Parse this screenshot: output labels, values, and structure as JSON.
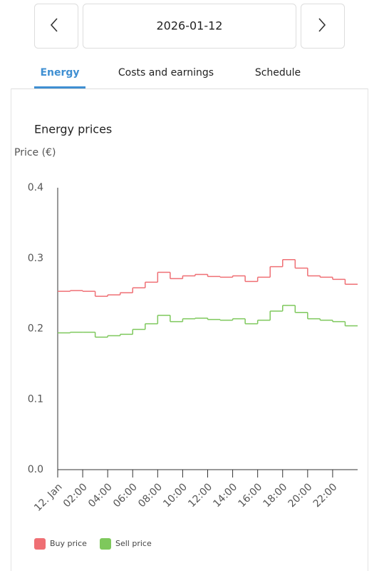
{
  "nav": {
    "date": "2026-01-12"
  },
  "tabs": [
    "Energy",
    "Costs and earnings",
    "Schedule"
  ],
  "chart_data": {
    "type": "line",
    "step": "post",
    "title": "Energy prices",
    "y_label": "Price (€)",
    "x": [
      0,
      1,
      2,
      3,
      4,
      5,
      6,
      7,
      8,
      9,
      10,
      11,
      12,
      13,
      14,
      15,
      16,
      17,
      18,
      19,
      20,
      21,
      22,
      23
    ],
    "xlim": [
      0,
      24
    ],
    "xticks": [
      {
        "value": 0,
        "label": "12. Jan"
      },
      {
        "value": 2,
        "label": "02:00"
      },
      {
        "value": 4,
        "label": "04:00"
      },
      {
        "value": 6,
        "label": "06:00"
      },
      {
        "value": 8,
        "label": "08:00"
      },
      {
        "value": 10,
        "label": "10:00"
      },
      {
        "value": 12,
        "label": "12:00"
      },
      {
        "value": 14,
        "label": "14:00"
      },
      {
        "value": 16,
        "label": "16:00"
      },
      {
        "value": 18,
        "label": "18:00"
      },
      {
        "value": 20,
        "label": "20:00"
      },
      {
        "value": 22,
        "label": "22:00"
      }
    ],
    "ylim": [
      0,
      0.4
    ],
    "yticks": [
      {
        "value": 0,
        "label": "0.0"
      },
      0.1,
      0.2,
      0.3,
      0.4
    ],
    "series": [
      {
        "name": "Buy price",
        "color": "#ef6f74",
        "values": [
          0.253,
          0.254,
          0.253,
          0.246,
          0.248,
          0.251,
          0.258,
          0.266,
          0.28,
          0.271,
          0.275,
          0.277,
          0.274,
          0.273,
          0.275,
          0.267,
          0.273,
          0.288,
          0.298,
          0.286,
          0.275,
          0.273,
          0.27,
          0.263
        ]
      },
      {
        "name": "Sell price",
        "color": "#7ec85c",
        "values": [
          0.194,
          0.195,
          0.195,
          0.188,
          0.19,
          0.192,
          0.199,
          0.207,
          0.219,
          0.21,
          0.214,
          0.215,
          0.213,
          0.212,
          0.214,
          0.207,
          0.212,
          0.225,
          0.233,
          0.223,
          0.214,
          0.212,
          0.21,
          0.204
        ]
      }
    ]
  }
}
